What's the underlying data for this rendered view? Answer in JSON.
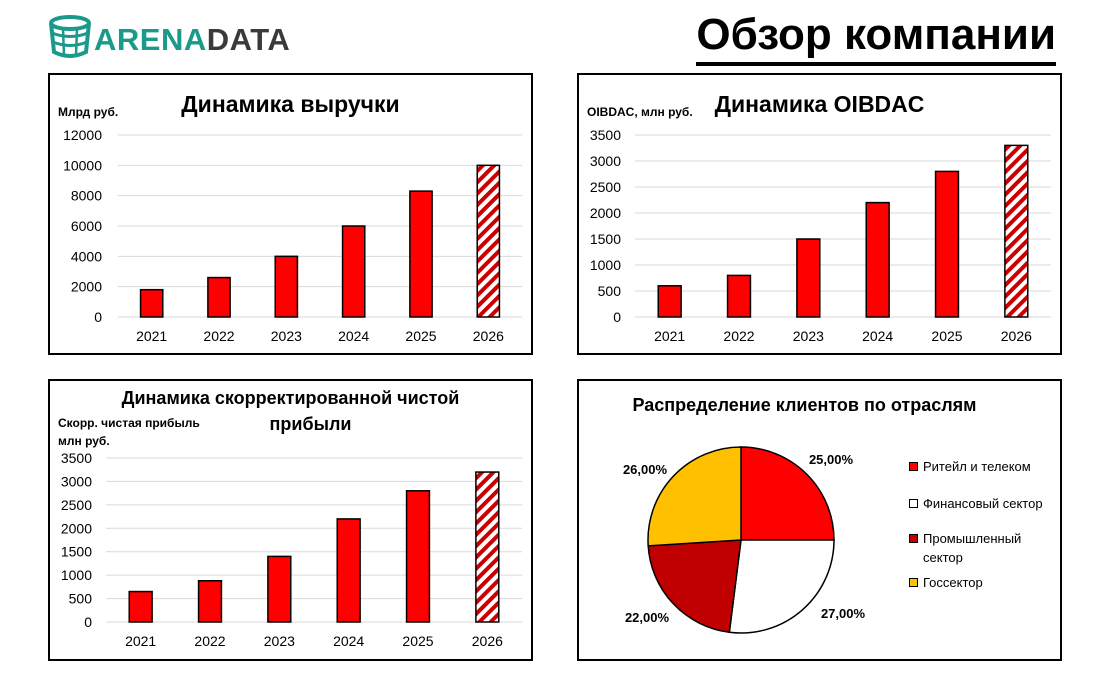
{
  "logo": {
    "text_part1": "ARENA",
    "text_part2": "DATA"
  },
  "page_title": "Обзор компании",
  "colors": {
    "bar_red": "#ff0000",
    "hatch_red": "#cc0000",
    "pie_red": "#ff0000",
    "pie_white": "#ffffff",
    "pie_darkred": "#c00000",
    "pie_yellow": "#ffc000",
    "logo_teal": "#1a9a8a"
  },
  "chart_data": [
    {
      "id": "revenue",
      "type": "bar",
      "title": "Динамика выручки",
      "ylabel": "Млрд руб.",
      "categories": [
        "2021",
        "2022",
        "2023",
        "2024",
        "2025",
        "2026"
      ],
      "values": [
        1800,
        2600,
        4000,
        6000,
        8300,
        10000
      ],
      "forecast_categories": [
        "2026"
      ],
      "ylim": [
        0,
        12000
      ],
      "yticks": [
        0,
        2000,
        4000,
        6000,
        8000,
        10000,
        12000
      ],
      "grid": true
    },
    {
      "id": "oibdac",
      "type": "bar",
      "title": "Динамика OIBDAC",
      "ylabel": "OIBDAC, млн руб.",
      "categories": [
        "2021",
        "2022",
        "2023",
        "2024",
        "2025",
        "2026"
      ],
      "values": [
        600,
        800,
        1500,
        2200,
        2800,
        3300
      ],
      "forecast_categories": [
        "2026"
      ],
      "ylim": [
        0,
        3500
      ],
      "yticks": [
        0,
        500,
        1000,
        1500,
        2000,
        2500,
        3000,
        3500
      ],
      "grid": true
    },
    {
      "id": "profit",
      "type": "bar",
      "title": "Динамика скорректированной чистой прибыли",
      "ylabel": "Скорр. чистая прибыль млн руб.",
      "categories": [
        "2021",
        "2022",
        "2023",
        "2024",
        "2025",
        "2026"
      ],
      "values": [
        650,
        880,
        1400,
        2200,
        2800,
        3200
      ],
      "forecast_categories": [
        "2026"
      ],
      "ylim": [
        0,
        3500
      ],
      "yticks": [
        0,
        500,
        1000,
        1500,
        2000,
        2500,
        3000,
        3500
      ],
      "grid": true
    },
    {
      "id": "clients",
      "type": "pie",
      "title": "Распределение клиентов по отраслям",
      "legend_position": "right",
      "slices": [
        {
          "name": "Ритейл и телеком",
          "value": 25,
          "label": "25,00%",
          "color": "#ff0000"
        },
        {
          "name": "Финансовый сектор",
          "value": 27,
          "label": "27,00%",
          "color": "#ffffff"
        },
        {
          "name": "Промышленный сектор",
          "value": 22,
          "label": "22,00%",
          "color": "#c00000"
        },
        {
          "name": "Госсектор",
          "value": 26,
          "label": "26,00%",
          "color": "#ffc000"
        }
      ]
    }
  ],
  "text": {
    "revenue_title": "Динамика выручки",
    "revenue_unit": "Млрд руб.",
    "oibdac_title": "Динамика OIBDAC",
    "oibdac_unit": "OIBDAC, млн руб.",
    "profit_title_line1": "Динамика скорректированной чистой",
    "profit_title_line2": "прибыли",
    "profit_unit_line1": "Скорр. чистая прибыль",
    "profit_unit_line2": "млн руб.",
    "pie_title": "Распределение клиентов по отраслям",
    "legend": [
      {
        "label_line1": "Ритейл и телеком",
        "label_line2": ""
      },
      {
        "label_line1": "Финансовый сектор",
        "label_line2": ""
      },
      {
        "label_line1": "Промышленный",
        "label_line2": "сектор"
      },
      {
        "label_line1": "Госсектор",
        "label_line2": ""
      }
    ]
  }
}
